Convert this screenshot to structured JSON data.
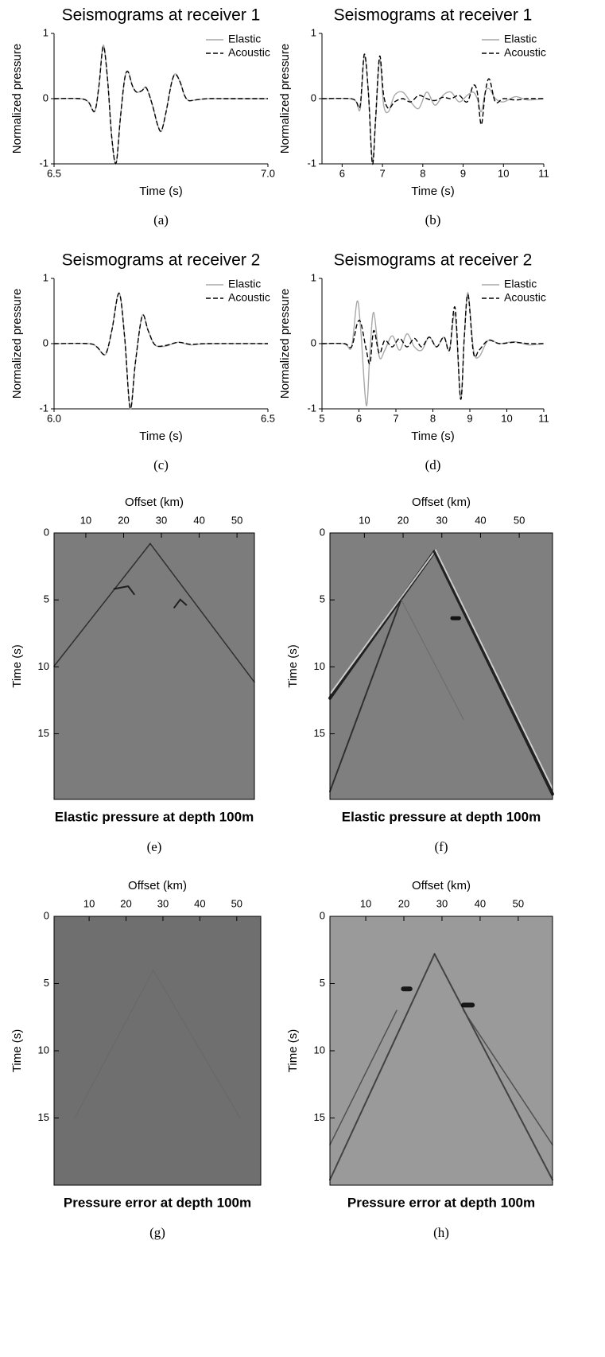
{
  "chart_data": [
    {
      "type": "line",
      "title": "Seismograms at receiver 1",
      "xlabel": "Time (s)",
      "ylabel": "Normalized pressure",
      "caption": "(a)",
      "xlim": [
        6.5,
        7.0
      ],
      "xticks": [
        6.5,
        {
          "value": 7.0,
          "label": "7.0"
        }
      ],
      "ylim": [
        -1,
        1
      ],
      "yticks": [
        -1,
        0,
        1
      ],
      "legend": "upper right",
      "x": [
        6.5,
        6.56,
        6.58,
        6.595,
        6.605,
        6.615,
        6.625,
        6.635,
        6.645,
        6.655,
        6.665,
        6.673,
        6.683,
        6.693,
        6.705,
        6.716,
        6.73,
        6.742,
        6.751,
        6.762,
        6.775,
        6.784,
        6.795,
        6.805,
        6.815,
        6.83,
        6.86,
        6.9,
        7.0
      ],
      "series": [
        {
          "name": "Elastic",
          "color": "#a8a8a8",
          "line_style": "solid",
          "values": [
            0,
            0,
            -0.05,
            -0.2,
            0.2,
            0.82,
            0.3,
            -0.6,
            -1,
            -0.3,
            0.3,
            0.42,
            0.2,
            0.1,
            0.12,
            0.17,
            -0.1,
            -0.4,
            -0.5,
            -0.2,
            0.25,
            0.38,
            0.25,
            0.05,
            -0.03,
            -0.02,
            0,
            0,
            0
          ]
        },
        {
          "name": "Acoustic",
          "color": "#000000",
          "line_style": "dashed",
          "values": [
            0,
            0,
            -0.05,
            -0.19,
            0.2,
            0.8,
            0.3,
            -0.6,
            -0.99,
            -0.3,
            0.3,
            0.41,
            0.2,
            0.1,
            0.12,
            0.16,
            -0.1,
            -0.4,
            -0.49,
            -0.2,
            0.25,
            0.37,
            0.25,
            0.05,
            -0.03,
            -0.02,
            0,
            0,
            0
          ]
        }
      ]
    },
    {
      "type": "line",
      "title": "Seismograms at receiver 1",
      "xlabel": "Time (s)",
      "ylabel": "Normalized pressure",
      "caption": "(b)",
      "xlim": [
        5.5,
        11
      ],
      "xticks": [
        6,
        7,
        8,
        9,
        10,
        11
      ],
      "ylim": [
        -1,
        1
      ],
      "yticks": [
        -1,
        0,
        1
      ],
      "legend": "upper right",
      "x": [
        5.5,
        6.2,
        6.35,
        6.45,
        6.55,
        6.65,
        6.75,
        6.83,
        6.93,
        7.03,
        7.15,
        7.3,
        7.5,
        7.7,
        7.9,
        8.1,
        8.3,
        8.5,
        8.7,
        8.9,
        9.1,
        9.25,
        9.35,
        9.45,
        9.55,
        9.65,
        9.8,
        10,
        10.3,
        10.6,
        11
      ],
      "series": [
        {
          "name": "Elastic",
          "color": "#a8a8a8",
          "line_style": "solid",
          "values": [
            0,
            0,
            -0.05,
            -0.15,
            0.65,
            0.1,
            -0.95,
            -0.35,
            0.6,
            -0.1,
            -0.2,
            0.05,
            0.1,
            -0.05,
            -0.15,
            0.1,
            -0.1,
            0.05,
            0.1,
            -0.05,
            0.05,
            0.1,
            0,
            -0.2,
            0.1,
            0.15,
            0,
            -0.05,
            0.03,
            -0.02,
            0
          ]
        },
        {
          "name": "Acoustic",
          "color": "#000000",
          "line_style": "dashed",
          "values": [
            0,
            0,
            -0.05,
            -0.1,
            0.68,
            0.1,
            -1,
            -0.3,
            0.65,
            0.05,
            -0.15,
            -0.05,
            0,
            -0.05,
            0.05,
            0,
            -0.03,
            0.02,
            0,
            0.05,
            -0.05,
            0.2,
            0.1,
            -0.4,
            0.1,
            0.3,
            -0.05,
            0,
            -0.02,
            0,
            0
          ]
        }
      ]
    },
    {
      "type": "line",
      "title": "Seismograms at receiver 2",
      "xlabel": "Time (s)",
      "ylabel": "Normalized pressure",
      "caption": "(c)",
      "xlim": [
        6.0,
        6.5
      ],
      "xticks": [
        {
          "value": 6.0,
          "label": "6.0"
        },
        6.5
      ],
      "ylim": [
        -1,
        1
      ],
      "yticks": [
        -1,
        0,
        1
      ],
      "legend": "upper right",
      "x": [
        6.0,
        6.08,
        6.1,
        6.12,
        6.135,
        6.152,
        6.165,
        6.178,
        6.19,
        6.206,
        6.22,
        6.236,
        6.26,
        6.29,
        6.32,
        6.36,
        6.5
      ],
      "series": [
        {
          "name": "Elastic",
          "color": "#a8a8a8",
          "line_style": "solid",
          "values": [
            0,
            0,
            -0.05,
            -0.17,
            0.2,
            0.78,
            0.1,
            -1,
            -0.3,
            0.43,
            0.2,
            -0.02,
            -0.04,
            0.02,
            -0.02,
            0,
            0
          ]
        },
        {
          "name": "Acoustic",
          "color": "#000000",
          "line_style": "dashed",
          "values": [
            0,
            0,
            -0.05,
            -0.16,
            0.2,
            0.77,
            0.1,
            -0.99,
            -0.3,
            0.42,
            0.2,
            -0.02,
            -0.03,
            0.02,
            -0.01,
            0,
            0
          ]
        }
      ]
    },
    {
      "type": "line",
      "title": "Seismograms at receiver 2",
      "xlabel": "Time (s)",
      "ylabel": "Normalized pressure",
      "caption": "(d)",
      "xlim": [
        5,
        11
      ],
      "xticks": [
        5,
        6,
        7,
        8,
        9,
        10,
        11
      ],
      "ylim": [
        -1,
        1
      ],
      "yticks": [
        -1,
        0,
        1
      ],
      "legend": "upper right",
      "x": [
        5,
        5.6,
        5.8,
        5.95,
        6.05,
        6.2,
        6.3,
        6.4,
        6.55,
        6.7,
        6.9,
        7.1,
        7.3,
        7.5,
        7.7,
        7.9,
        8.1,
        8.3,
        8.45,
        8.6,
        8.75,
        8.85,
        8.95,
        9.1,
        9.25,
        9.5,
        9.8,
        10.2,
        10.6,
        11
      ],
      "series": [
        {
          "name": "Elastic",
          "color": "#a8a8a8",
          "line_style": "solid",
          "values": [
            0,
            0,
            -0.05,
            0.65,
            0.2,
            -0.95,
            -0.1,
            0.48,
            -0.2,
            -0.1,
            0.12,
            -0.1,
            0.15,
            -0.05,
            -0.1,
            0.1,
            -0.05,
            0.1,
            -0.1,
            0.45,
            -0.85,
            0.1,
            0.78,
            -0.1,
            -0.2,
            0.05,
            0,
            0.03,
            -0.02,
            0
          ]
        },
        {
          "name": "Acoustic",
          "color": "#000000",
          "line_style": "dashed",
          "values": [
            0,
            0,
            -0.05,
            0.3,
            0.32,
            -0.1,
            -0.3,
            0.2,
            -0.15,
            0.05,
            -0.05,
            0.08,
            -0.05,
            0.08,
            -0.05,
            0.1,
            -0.05,
            0.1,
            -0.1,
            0.55,
            -0.85,
            0.1,
            0.75,
            -0.15,
            -0.1,
            0.05,
            0,
            0.02,
            0,
            0
          ]
        }
      ]
    },
    {
      "type": "image",
      "title": "Elastic pressure at depth 100m",
      "xlabel": "Offset (km)",
      "ylabel": "Time (s)",
      "caption": "(e)",
      "xaxis_position": "top",
      "y_reversed": true,
      "xlim": [
        1.6,
        54.6
      ],
      "xticks": [
        10,
        20,
        30,
        40,
        50
      ],
      "ylim": [
        0,
        19.9
      ],
      "yticks": [
        0,
        5,
        10,
        15
      ],
      "background": "#7c7c7c"
    },
    {
      "type": "image",
      "title": "Elastic pressure at depth 100m",
      "xlabel": "Offset (km)",
      "ylabel": "Time (s)",
      "caption": "(f)",
      "xaxis_position": "top",
      "y_reversed": true,
      "xlim": [
        1.1,
        58.6
      ],
      "xticks": [
        10,
        20,
        30,
        40,
        50
      ],
      "ylim": [
        0,
        19.9
      ],
      "yticks": [
        0,
        5,
        10,
        15
      ],
      "background": "#7f7f7f"
    },
    {
      "type": "image",
      "title": "Pressure error at depth 100m",
      "xlabel": "Offset (km)",
      "ylabel": "Time (s)",
      "caption": "(g)",
      "xaxis_position": "top",
      "y_reversed": true,
      "xlim": [
        0.5,
        56.5
      ],
      "xticks": [
        10,
        20,
        30,
        40,
        50
      ],
      "ylim": [
        0,
        20.0
      ],
      "yticks": [
        0,
        5,
        10,
        15
      ],
      "background": "#6f6f6f"
    },
    {
      "type": "image",
      "title": "Pressure error at depth 100m",
      "xlabel": "Offset (km)",
      "ylabel": "Time (s)",
      "caption": "(h)",
      "xaxis_position": "top",
      "y_reversed": true,
      "xlim": [
        0.6,
        59.0
      ],
      "xticks": [
        10,
        20,
        30,
        40,
        50
      ],
      "ylim": [
        0,
        20.0
      ],
      "yticks": [
        0,
        5,
        10,
        15
      ],
      "background": "#9a9a9a"
    }
  ]
}
